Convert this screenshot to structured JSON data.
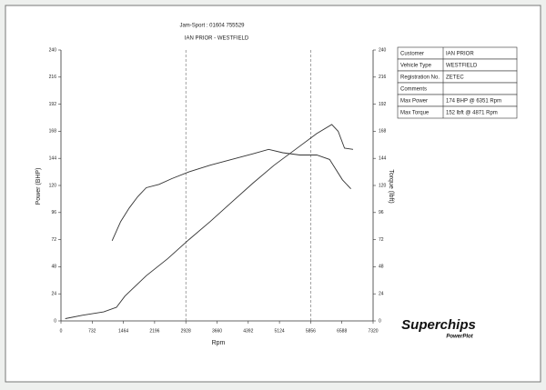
{
  "chart_data": {
    "type": "line",
    "header": "Jam-Sport : 01604 755529",
    "title": "IAN PRIOR - WESTFIELD",
    "xlabel": "Rpm",
    "ylabel": "Power (BHP)",
    "y2label": "Torque (lbft)",
    "xlim": [
      0,
      7320
    ],
    "xticks": [
      0,
      732,
      1464,
      2196,
      2928,
      3660,
      4392,
      5124,
      5856,
      6588,
      7320
    ],
    "ylim": [
      0,
      240
    ],
    "yticks": [
      0,
      24,
      48,
      72,
      96,
      120,
      144,
      168,
      192,
      216,
      240
    ],
    "y2lim": [
      0,
      240
    ],
    "y2ticks": [
      0,
      24,
      48,
      72,
      96,
      120,
      144,
      168,
      192,
      216,
      240
    ],
    "xgrid": [
      2928,
      5856
    ],
    "series": [
      {
        "name": "Power",
        "color": "#333333",
        "x": [
          100,
          500,
          1000,
          1300,
          1500,
          2000,
          2500,
          3000,
          3500,
          4000,
          4500,
          5000,
          5500,
          6000,
          6351,
          6500,
          6650,
          6850
        ],
        "values": [
          2,
          5,
          8,
          12,
          22,
          40,
          55,
          72,
          88,
          105,
          122,
          138,
          152,
          166,
          174,
          168,
          153,
          152
        ]
      },
      {
        "name": "Torque",
        "color": "#333333",
        "axis": "y2",
        "x": [
          1200,
          1400,
          1600,
          1800,
          2000,
          2300,
          2600,
          3000,
          3500,
          4000,
          4500,
          4871,
          5200,
          5600,
          6000,
          6300,
          6600,
          6800
        ],
        "values": [
          71,
          88,
          100,
          110,
          118,
          121,
          126,
          132,
          138,
          143,
          148,
          152,
          149,
          147,
          147,
          143,
          125,
          117
        ]
      }
    ]
  },
  "info_table": {
    "rows": [
      [
        "Customer",
        "IAN PRIOR"
      ],
      [
        "Vehicle Type",
        "WESTFIELD"
      ],
      [
        "Registration No.",
        "ZETEC"
      ],
      [
        "Comments"
      ],
      [
        "Max Power",
        "174 BHP @ 6351 Rpm"
      ],
      [
        "Max Torque",
        "152 lbft @ 4871 Rpm"
      ]
    ]
  },
  "logo": {
    "brand": "Superchips",
    "product": "PowerPlot"
  }
}
